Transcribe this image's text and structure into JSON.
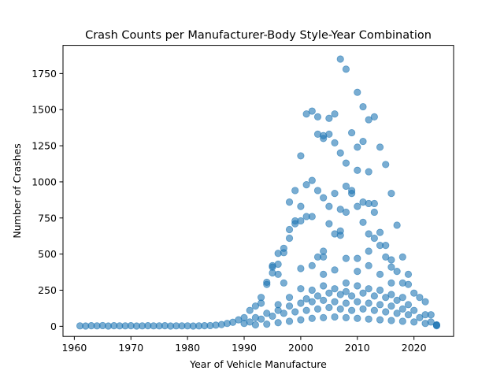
{
  "chart_data": {
    "type": "scatter",
    "title": "Crash Counts per Manufacturer-Body Style-Year Combination",
    "xlabel": "Year of Vehicle Manufacture",
    "ylabel": "Number of Crashes",
    "xlim": [
      1958,
      2027
    ],
    "ylim": [
      -70,
      1945
    ],
    "xticks": [
      1960,
      1970,
      1980,
      1990,
      2000,
      2010,
      2020
    ],
    "yticks": [
      0,
      250,
      500,
      750,
      1000,
      1250,
      1500,
      1750
    ],
    "grid": false,
    "legend": "none",
    "marker_color": "#1f77b4",
    "marker_alpha": 0.6,
    "series": [
      {
        "values": [
          [
            1961,
            3
          ],
          [
            1962,
            2
          ],
          [
            1963,
            4
          ],
          [
            1964,
            3
          ],
          [
            1965,
            5
          ],
          [
            1966,
            2
          ],
          [
            1967,
            4
          ],
          [
            1968,
            3
          ],
          [
            1969,
            3
          ],
          [
            1970,
            4
          ],
          [
            1971,
            2
          ],
          [
            1972,
            3
          ],
          [
            1973,
            4
          ],
          [
            1974,
            3
          ],
          [
            1975,
            3
          ],
          [
            1976,
            4
          ],
          [
            1977,
            2
          ],
          [
            1978,
            3
          ],
          [
            1979,
            3
          ],
          [
            1980,
            3
          ],
          [
            1981,
            2
          ],
          [
            1982,
            3
          ],
          [
            1983,
            4
          ],
          [
            1984,
            5
          ],
          [
            1985,
            8
          ],
          [
            1986,
            12
          ],
          [
            1987,
            20
          ],
          [
            1988,
            28
          ],
          [
            1989,
            45
          ],
          [
            1990,
            60
          ],
          [
            1991,
            110
          ],
          [
            1992,
            140
          ],
          [
            1993,
            160
          ],
          [
            1993,
            200
          ],
          [
            1994,
            290
          ],
          [
            1994,
            305
          ],
          [
            1995,
            410
          ],
          [
            1995,
            420
          ],
          [
            1995,
            370
          ],
          [
            1996,
            430
          ],
          [
            1996,
            505
          ],
          [
            1996,
            360
          ],
          [
            1997,
            510
          ],
          [
            1997,
            540
          ],
          [
            1997,
            300
          ],
          [
            1998,
            860
          ],
          [
            1998,
            670
          ],
          [
            1998,
            610
          ],
          [
            1999,
            940
          ],
          [
            1999,
            730
          ],
          [
            1999,
            710
          ],
          [
            2000,
            1180
          ],
          [
            2000,
            830
          ],
          [
            2000,
            730
          ],
          [
            2001,
            1470
          ],
          [
            2001,
            980
          ],
          [
            2001,
            760
          ],
          [
            2002,
            1490
          ],
          [
            2002,
            1010
          ],
          [
            2002,
            760
          ],
          [
            2003,
            1450
          ],
          [
            2003,
            1330
          ],
          [
            2003,
            940
          ],
          [
            2003,
            480
          ],
          [
            2004,
            1320
          ],
          [
            2004,
            1300
          ],
          [
            2004,
            890
          ],
          [
            2004,
            520
          ],
          [
            2004,
            480
          ],
          [
            2005,
            1440
          ],
          [
            2005,
            1330
          ],
          [
            2005,
            830
          ],
          [
            2005,
            710
          ],
          [
            2006,
            1470
          ],
          [
            2006,
            1270
          ],
          [
            2006,
            920
          ],
          [
            2006,
            640
          ],
          [
            2007,
            1850
          ],
          [
            2007,
            1200
          ],
          [
            2007,
            810
          ],
          [
            2007,
            660
          ],
          [
            2007,
            630
          ],
          [
            2008,
            1780
          ],
          [
            2008,
            1130
          ],
          [
            2008,
            970
          ],
          [
            2008,
            790
          ],
          [
            2008,
            470
          ],
          [
            2009,
            1340
          ],
          [
            2009,
            940
          ],
          [
            2009,
            920
          ],
          [
            2010,
            1620
          ],
          [
            2010,
            1240
          ],
          [
            2010,
            1080
          ],
          [
            2010,
            830
          ],
          [
            2010,
            470
          ],
          [
            2011,
            1520
          ],
          [
            2011,
            1280
          ],
          [
            2011,
            860
          ],
          [
            2011,
            720
          ],
          [
            2012,
            1430
          ],
          [
            2012,
            1070
          ],
          [
            2012,
            850
          ],
          [
            2012,
            640
          ],
          [
            2012,
            520
          ],
          [
            2013,
            1450
          ],
          [
            2013,
            850
          ],
          [
            2013,
            790
          ],
          [
            2013,
            610
          ],
          [
            2014,
            1240
          ],
          [
            2014,
            650
          ],
          [
            2014,
            560
          ],
          [
            2015,
            1120
          ],
          [
            2015,
            560
          ],
          [
            2015,
            480
          ],
          [
            2016,
            920
          ],
          [
            2016,
            460
          ],
          [
            2016,
            410
          ],
          [
            2017,
            700
          ],
          [
            2017,
            380
          ],
          [
            2018,
            480
          ],
          [
            2018,
            300
          ],
          [
            2019,
            360
          ],
          [
            2019,
            290
          ],
          [
            2020,
            230
          ],
          [
            2021,
            200
          ],
          [
            2022,
            170
          ],
          [
            2023,
            80
          ],
          [
            2024,
            10
          ],
          [
            2024,
            4
          ],
          [
            2000,
            400
          ],
          [
            2002,
            420
          ],
          [
            2004,
            360
          ],
          [
            2006,
            390
          ],
          [
            2008,
            300
          ],
          [
            2010,
            380
          ],
          [
            2012,
            420
          ],
          [
            2014,
            360
          ],
          [
            2016,
            300
          ],
          [
            2002,
            250
          ],
          [
            2004,
            280
          ],
          [
            2006,
            260
          ],
          [
            2008,
            240
          ],
          [
            2010,
            280
          ],
          [
            2012,
            260
          ],
          [
            2014,
            250
          ],
          [
            2016,
            220
          ],
          [
            2018,
            200
          ],
          [
            1998,
            200
          ],
          [
            1996,
            150
          ],
          [
            2000,
            260
          ],
          [
            2001,
            190
          ],
          [
            2003,
            210
          ],
          [
            2005,
            230
          ],
          [
            2007,
            220
          ],
          [
            2009,
            210
          ],
          [
            2011,
            230
          ],
          [
            2013,
            210
          ],
          [
            2015,
            200
          ],
          [
            2017,
            180
          ],
          [
            2019,
            150
          ],
          [
            1992,
            60
          ],
          [
            1994,
            90
          ],
          [
            1996,
            110
          ],
          [
            1998,
            140
          ],
          [
            2000,
            160
          ],
          [
            2002,
            170
          ],
          [
            2004,
            180
          ],
          [
            2006,
            170
          ],
          [
            2008,
            160
          ],
          [
            2010,
            170
          ],
          [
            2012,
            160
          ],
          [
            2014,
            150
          ],
          [
            2016,
            140
          ],
          [
            2018,
            120
          ],
          [
            2020,
            110
          ],
          [
            2022,
            80
          ],
          [
            1990,
            20
          ],
          [
            1991,
            30
          ],
          [
            1993,
            50
          ],
          [
            1995,
            70
          ],
          [
            1997,
            90
          ],
          [
            1999,
            100
          ],
          [
            2001,
            110
          ],
          [
            2003,
            120
          ],
          [
            2005,
            130
          ],
          [
            2007,
            120
          ],
          [
            2009,
            110
          ],
          [
            2011,
            120
          ],
          [
            2013,
            110
          ],
          [
            2015,
            100
          ],
          [
            2017,
            90
          ],
          [
            2019,
            80
          ],
          [
            2021,
            60
          ],
          [
            2023,
            30
          ],
          [
            1992,
            10
          ],
          [
            1994,
            15
          ],
          [
            1996,
            25
          ],
          [
            1998,
            35
          ],
          [
            2000,
            45
          ],
          [
            2002,
            55
          ],
          [
            2004,
            60
          ],
          [
            2006,
            65
          ],
          [
            2008,
            60
          ],
          [
            2010,
            55
          ],
          [
            2012,
            50
          ],
          [
            2014,
            45
          ],
          [
            2016,
            40
          ],
          [
            2018,
            35
          ],
          [
            2020,
            30
          ],
          [
            2022,
            20
          ],
          [
            2024,
            8
          ]
        ]
      }
    ]
  }
}
